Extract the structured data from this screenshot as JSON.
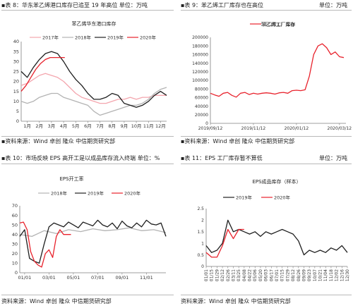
{
  "panels": {
    "p1": {
      "caption": "▪表 8：华东苯乙烯港口库存已追至 19 年高位  单位：万吨",
      "source": "▪资料来源：Wind 卓创 隆众 中信期货研究部"
    },
    "p2": {
      "caption": "▪表 9：苯乙烯工厂库存也在高位",
      "unit": "单位：万吨",
      "source": "▪资料来源：Wind 卓创 隆众 中信期货研究部"
    },
    "p3": {
      "caption": "▪表 10：市场反映 EPS 高开工是以成品库存流入终端  单位：%",
      "source": "资料来源：Wind 卓创 隆众 中信期货研究部"
    },
    "p4": {
      "caption": "▪表 11：EPS 工厂库存暂不算低",
      "unit": "单位：万吨",
      "source": "资料来源：Wind 卓创 隆众 中信期货研究部"
    }
  },
  "colors": {
    "c2017": "#f4a6ae",
    "c2018": "#b3b3b3",
    "c2019": "#1f1f1f",
    "c2020": "#e8222c",
    "axis": "#7f7f7f",
    "grid": "#e0e0e0"
  },
  "chart_data": [
    {
      "type": "line",
      "title": "苯乙烯华东港口库存",
      "legend": "top",
      "ylim": [
        0,
        40
      ],
      "yticks": [
        0,
        5,
        10,
        15,
        20,
        25,
        30,
        35,
        40
      ],
      "xticks": [
        "1月",
        "2月",
        "3月",
        "4月",
        "5月",
        "6月",
        "7月",
        "8月",
        "9月",
        "10月",
        "11月",
        "12月"
      ],
      "xrange": [
        0,
        12
      ],
      "series": [
        {
          "name": "2017年",
          "x": [
            0,
            0.5,
            1,
            1.5,
            2,
            2.5,
            3,
            3.5,
            4,
            4.5,
            5,
            5.5,
            6,
            6.5,
            7,
            7.5,
            8,
            8.5,
            9,
            9.5,
            10,
            10.5,
            11,
            11.5,
            12
          ],
          "values": [
            18,
            19,
            21,
            23,
            24,
            23,
            22,
            20,
            17,
            14,
            12,
            11,
            10,
            9,
            9,
            10,
            11,
            11,
            12,
            11,
            12,
            12,
            13,
            13,
            13
          ]
        },
        {
          "name": "2018年",
          "x": [
            0,
            0.5,
            1,
            1.5,
            2,
            2.5,
            3,
            3.5,
            4,
            4.5,
            5,
            5.5,
            6,
            6.5,
            7,
            7.5,
            8,
            8.5,
            9,
            9.5,
            10,
            10.5,
            11,
            11.5,
            12
          ],
          "values": [
            10,
            9,
            10,
            12,
            13,
            14,
            14,
            12,
            11,
            10,
            9,
            8,
            5,
            3,
            4,
            5,
            6,
            7,
            8,
            8,
            9,
            11,
            14,
            16,
            17
          ]
        },
        {
          "name": "2019年",
          "x": [
            0,
            0.5,
            1,
            1.5,
            2,
            2.5,
            3,
            3.5,
            4,
            4.5,
            5,
            5.5,
            6,
            6.5,
            7,
            7.5,
            8,
            8.5,
            9,
            9.5,
            10,
            10.5,
            11,
            11.5,
            12
          ],
          "values": [
            25,
            22,
            27,
            31,
            34,
            35,
            34,
            30,
            25,
            21,
            18,
            14,
            11,
            11,
            12,
            14,
            13,
            9,
            8,
            7,
            8,
            10,
            13,
            15,
            13
          ]
        },
        {
          "name": "2020年",
          "x": [
            0,
            0.4,
            0.8,
            1.2,
            1.6,
            2,
            2.4,
            2.8,
            3.2,
            3.6
          ],
          "values": [
            15,
            18,
            22,
            26,
            29,
            31,
            32,
            32,
            32,
            32
          ]
        }
      ]
    },
    {
      "type": "line",
      "title": "苯乙烯工厂库存",
      "legend": "top",
      "ylim": [
        0,
        200000
      ],
      "yticks": [
        0,
        20000,
        40000,
        60000,
        80000,
        100000,
        120000,
        140000,
        160000,
        180000,
        200000
      ],
      "xticks": [
        "2019/09/12",
        "2019/11/12",
        "2020/01/12",
        "2020/03/12"
      ],
      "xrange": [
        0,
        6.3
      ],
      "series": [
        {
          "name": "苯乙烯工厂库存",
          "x": [
            0,
            0.2,
            0.4,
            0.6,
            0.8,
            1,
            1.2,
            1.4,
            1.6,
            1.8,
            2,
            2.2,
            2.4,
            2.6,
            2.8,
            3,
            3.2,
            3.4,
            3.6,
            3.8,
            4,
            4.2,
            4.4,
            4.6,
            4.8,
            5,
            5.2,
            5.4,
            5.6,
            5.8,
            6,
            6.2
          ],
          "values": [
            70000,
            66000,
            63000,
            70000,
            72000,
            65000,
            61000,
            70000,
            72000,
            67000,
            70000,
            68000,
            70000,
            71000,
            70000,
            68000,
            71000,
            72000,
            70000,
            76000,
            77000,
            76000,
            78000,
            110000,
            160000,
            180000,
            185000,
            176000,
            160000,
            166000,
            155000,
            153000
          ]
        }
      ]
    },
    {
      "type": "line",
      "title": "EPS开工率",
      "legend": "top",
      "ylim": [
        0,
        70
      ],
      "yticks": [
        0,
        10,
        20,
        30,
        40,
        50,
        60,
        70
      ],
      "xticks": [
        "01/01",
        "03/01",
        "05/01",
        "07/01",
        "09/01",
        "11/01"
      ],
      "xrange": [
        0,
        12
      ],
      "series": [
        {
          "name": "2018年",
          "x": [
            0,
            1,
            2,
            3,
            4,
            5,
            6,
            7,
            8,
            9,
            10,
            11,
            12
          ],
          "values": [
            40,
            38,
            44,
            41,
            45,
            43,
            46,
            44,
            45,
            47,
            44,
            45,
            42
          ]
        },
        {
          "name": "2019年",
          "x": [
            0,
            0.4,
            0.8,
            1.2,
            1.6,
            2,
            2.4,
            2.8,
            3.2,
            3.6,
            4,
            4.4,
            4.8,
            5.2,
            5.6,
            6,
            6.4,
            6.8,
            7.2,
            7.6,
            8,
            8.4,
            8.8,
            9.2,
            9.6,
            10,
            10.4,
            10.8,
            11.2,
            11.6,
            12
          ],
          "values": [
            38,
            45,
            15,
            12,
            10,
            30,
            48,
            52,
            50,
            48,
            53,
            50,
            47,
            53,
            51,
            49,
            55,
            50,
            48,
            52,
            46,
            54,
            49,
            47,
            52,
            48,
            55,
            51,
            50,
            52,
            38
          ]
        },
        {
          "name": "2020年",
          "x": [
            0,
            0.3,
            0.6,
            0.9,
            1.2,
            1.5,
            1.8,
            2.1,
            2.4,
            2.7,
            3,
            3.3,
            3.6,
            3.9,
            4.2
          ],
          "values": [
            52,
            53,
            45,
            22,
            12,
            8,
            6,
            20,
            24,
            16,
            38,
            45,
            40,
            40,
            40
          ]
        }
      ]
    },
    {
      "type": "line",
      "title": "EPS成品库存（样本）",
      "legend": "top",
      "ylim": [
        0,
        2.5
      ],
      "yticks": [
        0,
        0.5,
        1,
        1.5,
        2,
        2.5
      ],
      "xticks": [
        "01/01",
        "01/15",
        "01/29",
        "02/12",
        "02/26",
        "03/11",
        "03/25",
        "04/08",
        "04/22",
        "05/06",
        "05/20",
        "06/03",
        "06/17",
        "07/01",
        "07/15",
        "07/29",
        "08/12",
        "08/26",
        "09/09",
        "09/23",
        "10/07",
        "10/21",
        "11/04",
        "11/18",
        "12/02",
        "12/16",
        "12/30"
      ],
      "xrange": [
        0,
        26
      ],
      "series": [
        {
          "name": "2019年",
          "x": [
            0,
            1,
            2,
            3,
            4,
            5,
            6,
            7,
            8,
            9,
            10,
            11,
            12,
            13,
            14,
            15,
            16,
            17,
            18,
            19,
            20,
            21,
            22,
            23,
            24,
            25,
            26
          ],
          "values": [
            0.9,
            0.6,
            0.7,
            1.0,
            2.0,
            1.5,
            1.6,
            1.5,
            1.4,
            1.5,
            1.3,
            1.5,
            1.4,
            1.5,
            1.6,
            1.5,
            1.4,
            1.1,
            0.5,
            0.7,
            0.6,
            0.7,
            0.6,
            0.8,
            0.7,
            0.9,
            0.6
          ]
        },
        {
          "name": "2020年",
          "x": [
            0,
            1,
            2,
            3,
            4,
            5,
            6,
            7
          ],
          "values": [
            0.6,
            0.4,
            0.4,
            0.9,
            1.6,
            1.2,
            1.6,
            1.6
          ]
        }
      ]
    }
  ]
}
